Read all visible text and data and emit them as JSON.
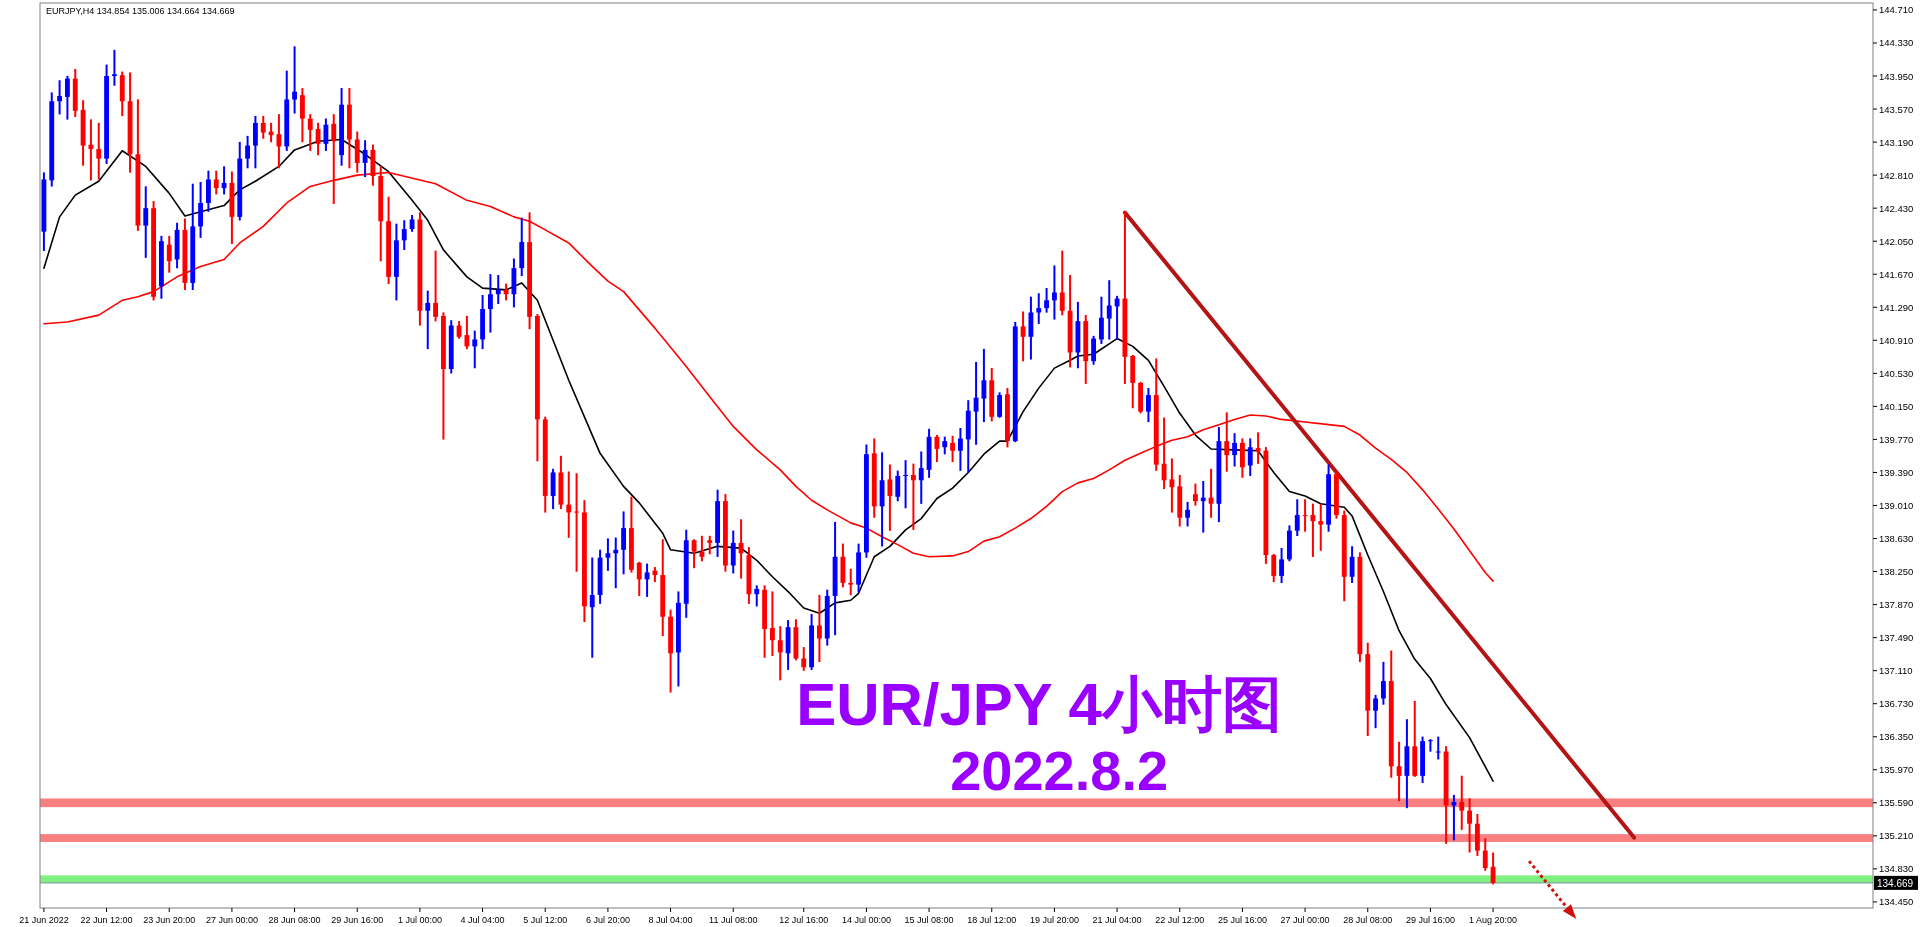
{
  "chart_data": {
    "type": "candlestick",
    "title": "EUR/JPY 4小时图",
    "subtitle": "2022.8.2",
    "annotations": [
      "EURJPY,H4  134.854 135.006 134.664 134.669"
    ],
    "categories": [
      "21 Jun 2022",
      null,
      null,
      null,
      null,
      null,
      null,
      null,
      "22 Jun 12:00",
      null,
      null,
      null,
      null,
      null,
      null,
      null,
      "23 Jun 20:00",
      null,
      null,
      null,
      null,
      null,
      null,
      null,
      "27 Jun 00:00",
      null,
      null,
      null,
      null,
      null,
      null,
      null,
      "28 Jun 08:00",
      null,
      null,
      null,
      null,
      null,
      null,
      null,
      "29 Jun 16:00",
      null,
      null,
      null,
      null,
      null,
      null,
      null,
      "1 Jul 00:00",
      null,
      null,
      null,
      null,
      null,
      null,
      null,
      "4 Jul 04:00",
      null,
      null,
      null,
      null,
      null,
      null,
      null,
      "5 Jul 12:00",
      null,
      null,
      null,
      null,
      null,
      null,
      null,
      "6 Jul 20:00",
      null,
      null,
      null,
      null,
      null,
      null,
      null,
      "8 Jul 04:00",
      null,
      null,
      null,
      null,
      null,
      null,
      null,
      "11 Jul 08:00",
      null,
      null,
      null,
      null,
      null,
      null,
      null,
      null,
      "12 Jul 16:00",
      null,
      null,
      null,
      null,
      null,
      null,
      null,
      "14 Jul 00:00",
      null,
      null,
      null,
      null,
      null,
      null,
      null,
      "15 Jul 08:00",
      null,
      null,
      null,
      null,
      null,
      null,
      null,
      "18 Jul 12:00",
      null,
      null,
      null,
      null,
      null,
      null,
      null,
      "19 Jul 20:00",
      null,
      null,
      null,
      null,
      null,
      null,
      null,
      "21 Jul 04:00",
      null,
      null,
      null,
      null,
      null,
      null,
      null,
      "22 Jul 12:00",
      null,
      null,
      null,
      null,
      null,
      null,
      null,
      "25 Jul 16:00",
      null,
      null,
      null,
      null,
      null,
      null,
      null,
      "27 Jul 00:00",
      null,
      null,
      null,
      null,
      null,
      null,
      null,
      "28 Jul 08:00",
      null,
      null,
      null,
      null,
      null,
      null,
      null,
      "29 Jul 16:00",
      null,
      null,
      null,
      null,
      null,
      null,
      null,
      "1 Aug 20:00",
      null,
      null,
      null,
      null,
      null,
      null,
      null,
      null,
      null,
      null,
      null,
      null,
      null,
      null,
      null,
      null,
      null,
      null,
      null,
      null,
      null,
      null,
      null,
      null,
      null,
      null,
      null,
      null,
      null,
      null,
      null,
      null,
      null,
      null,
      null,
      null,
      null,
      null,
      null,
      null,
      null,
      null,
      null,
      null,
      null,
      null,
      null,
      null
    ],
    "ohlc": [
      [
        142.16,
        142.83,
        141.95,
        142.76
      ],
      [
        142.75,
        143.75,
        142.69,
        143.66
      ],
      [
        143.66,
        143.89,
        143.52,
        143.72
      ],
      [
        143.71,
        143.94,
        143.46,
        143.92
      ],
      [
        143.92,
        144.02,
        143.49,
        143.55
      ],
      [
        143.56,
        143.66,
        142.93,
        143.15
      ],
      [
        143.16,
        143.44,
        142.76,
        143.11
      ],
      [
        143.11,
        143.4,
        142.77,
        143.0
      ],
      [
        143.0,
        144.07,
        142.95,
        143.95
      ],
      [
        143.95,
        144.24,
        143.85,
        143.97
      ],
      [
        143.96,
        143.99,
        143.5,
        143.66
      ],
      [
        143.66,
        143.98,
        142.85,
        143.05
      ],
      [
        143.05,
        143.67,
        142.18,
        142.23
      ],
      [
        142.23,
        142.67,
        141.87,
        142.43
      ],
      [
        142.43,
        142.5,
        141.38,
        141.41
      ],
      [
        141.53,
        142.1,
        141.4,
        142.05
      ],
      [
        142.01,
        142.1,
        141.7,
        141.82
      ],
      [
        141.84,
        142.25,
        141.75,
        142.18
      ],
      [
        142.18,
        142.3,
        141.5,
        141.57
      ],
      [
        141.57,
        142.7,
        141.5,
        142.22
      ],
      [
        142.22,
        142.72,
        142.1,
        142.49
      ],
      [
        142.49,
        142.85,
        142.4,
        142.76
      ],
      [
        142.76,
        142.85,
        142.6,
        142.66
      ],
      [
        142.66,
        142.9,
        142.6,
        142.72
      ],
      [
        142.72,
        142.84,
        142.03,
        142.33
      ],
      [
        142.33,
        143.18,
        142.3,
        143.0
      ],
      [
        143.0,
        143.25,
        142.9,
        143.15
      ],
      [
        143.15,
        143.48,
        142.9,
        143.41
      ],
      [
        143.41,
        143.48,
        143.24,
        143.3
      ],
      [
        143.31,
        143.4,
        143.2,
        143.27
      ],
      [
        143.28,
        143.5,
        142.9,
        143.14
      ],
      [
        143.14,
        144.0,
        143.1,
        143.68
      ],
      [
        143.68,
        144.28,
        143.53,
        143.77
      ],
      [
        143.73,
        143.8,
        143.2,
        143.46
      ],
      [
        143.46,
        143.5,
        143.1,
        143.33
      ],
      [
        143.34,
        143.4,
        143.05,
        143.17
      ],
      [
        143.17,
        143.45,
        143.1,
        143.39
      ],
      [
        143.4,
        143.5,
        142.49,
        143.2
      ],
      [
        143.04,
        143.8,
        142.93,
        143.62
      ],
      [
        143.62,
        143.8,
        142.9,
        143.22
      ],
      [
        143.22,
        143.3,
        142.85,
        142.95
      ],
      [
        142.95,
        143.2,
        142.8,
        143.1
      ],
      [
        143.1,
        143.15,
        142.7,
        142.8
      ],
      [
        142.8,
        142.9,
        141.83,
        142.28
      ],
      [
        142.28,
        142.55,
        141.57,
        141.64
      ],
      [
        141.64,
        142.24,
        141.38,
        142.06
      ],
      [
        142.06,
        142.28,
        141.96,
        142.19
      ],
      [
        142.19,
        142.34,
        142.17,
        142.3
      ],
      [
        142.3,
        142.37,
        141.09,
        141.25
      ],
      [
        141.25,
        141.47,
        140.82,
        141.34
      ],
      [
        141.34,
        141.93,
        141.14,
        141.18
      ],
      [
        141.19,
        141.22,
        139.78,
        140.58
      ],
      [
        140.58,
        141.13,
        140.54,
        141.08
      ],
      [
        141.08,
        141.12,
        140.94,
        140.95
      ],
      [
        140.97,
        141.18,
        140.82,
        140.84
      ],
      [
        140.84,
        141.01,
        140.6,
        140.92
      ],
      [
        140.92,
        141.42,
        140.82,
        141.27
      ],
      [
        141.27,
        141.66,
        141.01,
        141.44
      ],
      [
        141.44,
        141.65,
        141.34,
        141.49
      ],
      [
        141.49,
        141.55,
        141.38,
        141.44
      ],
      [
        141.44,
        141.84,
        141.3,
        141.74
      ],
      [
        141.74,
        142.31,
        141.66,
        142.04
      ],
      [
        142.04,
        142.37,
        141.05,
        141.18
      ],
      [
        141.19,
        141.2,
        139.53,
        140.0
      ],
      [
        140.0,
        140.02,
        138.94,
        139.12
      ],
      [
        139.12,
        139.42,
        138.98,
        139.39
      ],
      [
        139.39,
        139.57,
        138.98,
        139.02
      ],
      [
        139.02,
        139.39,
        138.65,
        138.93
      ],
      [
        138.94,
        139.37,
        138.26,
        138.93
      ],
      [
        138.93,
        139.06,
        137.68,
        137.85
      ],
      [
        137.84,
        138.4,
        137.27,
        137.98
      ],
      [
        137.98,
        138.49,
        137.89,
        138.41
      ],
      [
        138.41,
        138.62,
        138.27,
        138.46
      ],
      [
        138.46,
        138.63,
        138.07,
        138.5
      ],
      [
        138.5,
        138.93,
        138.23,
        138.75
      ],
      [
        138.75,
        139.1,
        138.25,
        138.27
      ],
      [
        138.35,
        138.35,
        137.98,
        138.16
      ],
      [
        138.16,
        138.33,
        137.97,
        138.24
      ],
      [
        138.26,
        138.29,
        138.14,
        138.21
      ],
      [
        138.21,
        138.61,
        137.52,
        137.73
      ],
      [
        137.73,
        137.8,
        136.87,
        137.31
      ],
      [
        137.32,
        138.01,
        136.94,
        137.89
      ],
      [
        137.88,
        138.72,
        137.73,
        138.61
      ],
      [
        138.61,
        138.61,
        138.3,
        138.48
      ],
      [
        138.48,
        138.65,
        138.38,
        138.42
      ],
      [
        138.61,
        138.65,
        138.46,
        138.58
      ],
      [
        138.58,
        139.18,
        138.43,
        139.06
      ],
      [
        139.06,
        139.13,
        138.26,
        138.32
      ],
      [
        138.32,
        138.71,
        138.24,
        138.58
      ],
      [
        138.58,
        138.84,
        138.18,
        138.46
      ],
      [
        138.44,
        138.52,
        137.89,
        137.99
      ],
      [
        137.99,
        138.08,
        137.86,
        138.05
      ],
      [
        138.04,
        138.08,
        137.27,
        137.59
      ],
      [
        137.6,
        138.01,
        137.29,
        137.46
      ],
      [
        137.46,
        137.61,
        137.01,
        137.32
      ],
      [
        137.31,
        137.68,
        137.13,
        137.61
      ],
      [
        137.61,
        137.69,
        137.24,
        137.25
      ],
      [
        137.25,
        137.37,
        137.12,
        137.15
      ],
      [
        137.15,
        137.75,
        137.13,
        137.63
      ],
      [
        137.63,
        137.97,
        137.22,
        137.48
      ],
      [
        137.48,
        138.03,
        137.41,
        137.97
      ],
      [
        137.97,
        138.81,
        137.53,
        138.42
      ],
      [
        138.42,
        138.56,
        138.08,
        138.12
      ],
      [
        138.12,
        138.27,
        137.99,
        138.1
      ],
      [
        138.1,
        138.56,
        138.02,
        138.47
      ],
      [
        138.47,
        139.7,
        138.42,
        139.6
      ],
      [
        139.61,
        139.77,
        138.88,
        139.0
      ],
      [
        139.0,
        139.61,
        138.55,
        139.3
      ],
      [
        139.31,
        139.47,
        138.73,
        139.12
      ],
      [
        139.11,
        139.4,
        139.07,
        139.35
      ],
      [
        139.35,
        139.52,
        138.99,
        139.36
      ],
      [
        139.36,
        139.48,
        138.74,
        139.3
      ],
      [
        139.3,
        139.62,
        139.04,
        139.44
      ],
      [
        139.42,
        139.88,
        139.34,
        139.8
      ],
      [
        139.8,
        139.81,
        139.52,
        139.66
      ],
      [
        139.68,
        139.79,
        139.61,
        139.75
      ],
      [
        139.73,
        139.8,
        139.52,
        139.64
      ],
      [
        139.64,
        139.89,
        139.42,
        139.78
      ],
      [
        139.77,
        140.21,
        139.4,
        140.1
      ],
      [
        140.09,
        140.65,
        139.72,
        140.25
      ],
      [
        140.24,
        140.8,
        139.98,
        140.45
      ],
      [
        140.45,
        140.58,
        139.99,
        140.03
      ],
      [
        140.03,
        140.3,
        140.03,
        140.28
      ],
      [
        140.29,
        140.35,
        139.69,
        139.75
      ],
      [
        139.75,
        141.11,
        139.75,
        141.07
      ],
      [
        141.07,
        141.23,
        140.68,
        140.95
      ],
      [
        140.95,
        141.4,
        140.7,
        141.23
      ],
      [
        141.23,
        141.44,
        141.11,
        141.28
      ],
      [
        141.28,
        141.5,
        141.24,
        141.37
      ],
      [
        141.37,
        141.76,
        141.16,
        141.46
      ],
      [
        141.46,
        141.93,
        141.21,
        141.25
      ],
      [
        141.25,
        141.65,
        140.61,
        140.77
      ],
      [
        140.77,
        141.34,
        140.6,
        141.13
      ],
      [
        141.13,
        141.19,
        140.42,
        140.67
      ],
      [
        140.67,
        140.95,
        140.64,
        140.93
      ],
      [
        140.92,
        141.4,
        140.88,
        141.17
      ],
      [
        141.16,
        141.59,
        140.93,
        141.31
      ],
      [
        141.3,
        141.41,
        140.93,
        141.39
      ],
      [
        141.39,
        142.38,
        140.42,
        140.72
      ],
      [
        140.73,
        140.73,
        140.14,
        140.42
      ],
      [
        140.42,
        140.42,
        140.08,
        140.09
      ],
      [
        140.09,
        140.35,
        139.98,
        140.28
      ],
      [
        140.28,
        140.69,
        139.42,
        139.48
      ],
      [
        139.49,
        140.01,
        139.21,
        139.3
      ],
      [
        139.31,
        139.54,
        138.94,
        139.22
      ],
      [
        139.23,
        139.35,
        138.78,
        138.87
      ],
      [
        138.87,
        139.04,
        138.78,
        138.96
      ],
      [
        139.14,
        139.25,
        139.02,
        139.06
      ],
      [
        139.06,
        139.28,
        138.71,
        139.1
      ],
      [
        139.1,
        139.42,
        138.88,
        139.03
      ],
      [
        139.03,
        139.9,
        138.83,
        139.75
      ],
      [
        139.75,
        140.07,
        139.41,
        139.59
      ],
      [
        139.59,
        139.83,
        139.47,
        139.73
      ],
      [
        139.73,
        139.77,
        139.34,
        139.45
      ],
      [
        139.47,
        139.77,
        139.36,
        139.68
      ],
      [
        139.67,
        139.84,
        139.5,
        139.63
      ],
      [
        139.64,
        139.67,
        138.35,
        138.44
      ],
      [
        138.44,
        138.44,
        138.14,
        138.2
      ],
      [
        138.2,
        138.51,
        138.13,
        138.39
      ],
      [
        138.39,
        138.77,
        138.38,
        138.72
      ],
      [
        138.72,
        139.07,
        138.67,
        138.9
      ],
      [
        138.9,
        139.07,
        138.72,
        138.89
      ],
      [
        138.9,
        139.02,
        138.43,
        138.83
      ],
      [
        138.83,
        139.02,
        138.5,
        138.79
      ],
      [
        138.79,
        139.47,
        138.72,
        139.37
      ],
      [
        139.37,
        139.39,
        138.87,
        138.9
      ],
      [
        138.9,
        138.94,
        137.92,
        138.19
      ],
      [
        138.19,
        138.53,
        138.13,
        138.42
      ],
      [
        138.42,
        138.46,
        137.22,
        137.3
      ],
      [
        137.3,
        137.42,
        136.37,
        136.65
      ],
      [
        136.65,
        136.82,
        136.46,
        136.79
      ],
      [
        136.79,
        137.2,
        136.73,
        136.99
      ],
      [
        136.99,
        137.33,
        135.89,
        136.01
      ],
      [
        136.01,
        136.28,
        135.62,
        135.9
      ],
      [
        135.9,
        136.54,
        135.54,
        136.24
      ],
      [
        136.24,
        136.75,
        135.9,
        135.9
      ],
      [
        135.9,
        136.34,
        135.83,
        136.3
      ],
      [
        136.3,
        136.31,
        136.19,
        136.31
      ],
      [
        136.17,
        136.34,
        136.1,
        136.18
      ],
      [
        136.18,
        136.23,
        135.13,
        135.56
      ],
      [
        135.56,
        135.67,
        135.17,
        135.6
      ],
      [
        135.6,
        135.89,
        135.29,
        135.5
      ],
      [
        135.5,
        135.63,
        135.03,
        135.35
      ],
      [
        135.35,
        135.45,
        134.99,
        135.04
      ],
      [
        135.04,
        135.17,
        134.82,
        134.84
      ],
      [
        134.854,
        135.006,
        134.664,
        134.669
      ],
      null,
      null,
      null,
      null,
      null,
      null,
      null,
      null,
      null,
      null,
      null,
      null,
      null,
      null,
      null,
      null,
      null,
      null,
      null,
      null,
      null,
      null,
      null,
      null,
      null,
      null,
      null,
      null,
      null,
      null,
      null,
      null,
      null,
      null,
      null,
      null,
      null,
      null,
      null,
      null,
      null,
      null,
      null,
      null,
      null,
      null,
      null,
      null
    ],
    "colors": [
      "#0000ff",
      "#0000ff",
      "#0000ff",
      "#0000ff",
      "#ff0000",
      "#ff0000",
      "#ff0000",
      "#ff0000",
      "#0000ff",
      "#0000ff",
      "#ff0000",
      "#ff0000",
      "#ff0000",
      "#0000ff",
      "#ff0000",
      "#0000ff",
      "#ff0000",
      "#0000ff",
      "#ff0000",
      "#0000ff",
      "#0000ff",
      "#0000ff",
      "#ff0000",
      "#0000ff",
      "#ff0000",
      "#0000ff",
      "#0000ff",
      "#0000ff",
      "#ff0000",
      "#ff0000",
      "#ff0000",
      "#0000ff",
      "#0000ff",
      "#ff0000",
      "#ff0000",
      "#ff0000",
      "#0000ff",
      "#ff0000",
      "#0000ff",
      "#ff0000",
      "#ff0000",
      "#0000ff",
      "#ff0000",
      "#ff0000",
      "#ff0000",
      "#0000ff",
      "#0000ff",
      "#0000ff",
      "#ff0000",
      "#0000ff",
      "#ff0000",
      "#ff0000",
      "#0000ff",
      "#ff0000",
      "#ff0000",
      "#0000ff",
      "#0000ff",
      "#0000ff",
      "#0000ff",
      "#ff0000",
      "#0000ff",
      "#0000ff",
      "#ff0000",
      "#ff0000",
      "#ff0000",
      "#0000ff",
      "#ff0000",
      "#ff0000",
      "#ff0000",
      "#ff0000",
      "#0000ff",
      "#0000ff",
      "#0000ff",
      "#0000ff",
      "#0000ff",
      "#ff0000",
      "#ff0000",
      "#0000ff",
      "#ff0000",
      "#ff0000",
      "#ff0000",
      "#0000ff",
      "#0000ff",
      "#ff0000",
      "#ff0000",
      "#ff0000",
      "#0000ff",
      "#ff0000",
      "#0000ff",
      "#ff0000",
      "#ff0000",
      "#0000ff",
      "#ff0000",
      "#ff0000",
      "#ff0000",
      "#0000ff",
      "#ff0000",
      "#ff0000",
      "#0000ff",
      "#ff0000",
      "#0000ff",
      "#0000ff",
      "#ff0000",
      "#ff0000",
      "#0000ff",
      "#0000ff",
      "#ff0000",
      "#0000ff",
      "#ff0000",
      "#0000ff",
      "#0000ff",
      "#ff0000",
      "#0000ff",
      "#0000ff",
      "#ff0000",
      "#0000ff",
      "#ff0000",
      "#0000ff",
      "#0000ff",
      "#0000ff",
      "#0000ff",
      "#ff0000",
      "#0000ff",
      "#ff0000",
      "#0000ff",
      "#ff0000",
      "#0000ff",
      "#0000ff",
      "#0000ff",
      "#0000ff",
      "#ff0000",
      "#ff0000",
      "#0000ff",
      "#ff0000",
      "#0000ff",
      "#0000ff",
      "#0000ff",
      "#0000ff",
      "#ff0000",
      "#ff0000",
      "#ff0000",
      "#0000ff",
      "#ff0000",
      "#ff0000",
      "#ff0000",
      "#ff0000",
      "#0000ff",
      "#ff0000",
      "#0000ff",
      "#ff0000",
      "#0000ff",
      "#ff0000",
      "#0000ff",
      "#ff0000",
      "#0000ff",
      "#ff0000",
      "#ff0000",
      "#ff0000",
      "#0000ff",
      "#0000ff",
      "#0000ff",
      "#ff0000",
      "#ff0000",
      "#ff0000",
      "#0000ff",
      "#ff0000",
      "#ff0000",
      "#0000ff",
      "#ff0000",
      "#ff0000",
      "#0000ff",
      "#0000ff",
      "#ff0000",
      "#ff0000",
      "#0000ff",
      "#ff0000",
      "#0000ff",
      "#0000ff",
      "#0000ff",
      "#ff0000",
      "#0000ff",
      "#ff0000",
      "#ff0000",
      "#ff0000",
      "#ff0000",
      "#ff0000",
      null,
      null,
      null,
      null,
      null,
      null,
      null,
      null,
      null,
      null,
      null,
      null,
      null,
      null,
      null,
      null,
      null,
      null,
      null,
      null,
      null,
      null,
      null,
      null,
      null,
      null,
      null,
      null,
      null,
      null,
      null,
      null,
      null,
      null,
      null,
      null,
      null,
      null,
      null,
      null,
      null,
      null,
      null,
      null,
      null,
      null,
      null,
      null
    ],
    "series": [
      {
        "type": "line",
        "color": "#000000",
        "values": [
          141.74,
          null,
          142.33,
          null,
          142.58,
          null,
          null,
          142.74,
          null,
          null,
          143.09,
          null,
          null,
          142.91,
          null,
          null,
          142.6,
          null,
          142.34,
          null,
          142.39,
          null,
          null,
          142.46,
          null,
          142.64,
          null,
          142.74,
          null,
          null,
          142.91,
          null,
          143.1,
          null,
          null,
          143.2,
          null,
          null,
          143.22,
          null,
          null,
          143.05,
          null,
          null,
          142.85,
          null,
          null,
          142.52,
          null,
          142.29,
          null,
          141.95,
          null,
          null,
          141.64,
          null,
          141.51,
          null,
          null,
          141.49,
          null,
          141.57,
          null,
          141.37,
          null,
          140.91,
          null,
          140.45,
          null,
          140.03,
          null,
          139.61,
          null,
          null,
          139.23,
          null,
          139.04,
          null,
          null,
          138.69,
          138.5,
          null,
          null,
          138.46,
          null,
          null,
          138.54,
          null,
          null,
          138.52,
          null,
          138.38,
          null,
          138.19,
          null,
          138.02,
          null,
          137.83,
          null,
          137.77,
          null,
          137.89,
          null,
          137.92,
          138.0,
          null,
          138.42,
          null,
          138.54,
          null,
          138.73,
          null,
          138.86,
          null,
          139.09,
          null,
          139.21,
          null,
          139.39,
          null,
          139.6,
          null,
          139.75,
          139.75,
          null,
          140.09,
          null,
          140.36,
          null,
          140.59,
          null,
          140.68,
          140.73,
          null,
          140.75,
          null,
          null,
          140.93,
          null,
          140.84,
          null,
          140.68,
          null,
          140.38,
          null,
          140.07,
          null,
          139.82,
          null,
          139.66,
          null,
          null,
          139.65,
          null,
          null,
          139.64,
          null,
          139.39,
          null,
          139.17,
          null,
          139.12,
          null,
          139.03,
          null,
          null,
          138.99,
          138.89,
          null,
          138.44,
          null,
          138.02,
          null,
          137.57,
          null,
          137.24,
          null,
          137.02,
          null,
          136.72,
          null,
          null,
          136.34,
          null,
          null,
          135.84,
          null,
          null,
          null,
          null,
          null,
          null,
          null,
          null,
          null,
          null,
          null,
          null,
          null,
          null,
          null,
          null,
          null,
          null,
          null,
          null,
          null,
          null,
          null,
          null,
          null,
          null,
          null,
          null,
          null,
          null,
          null,
          null,
          null,
          null,
          null,
          null,
          null,
          null,
          null,
          null,
          null,
          null,
          null,
          null,
          null,
          null,
          null,
          null
        ]
      },
      {
        "type": "line",
        "color": "#ff0000",
        "values": [
          141.1,
          null,
          null,
          141.12,
          null,
          null,
          null,
          141.2,
          null,
          null,
          141.37,
          null,
          141.41,
          null,
          141.47,
          null,
          null,
          141.64,
          null,
          null,
          141.76,
          null,
          null,
          141.84,
          null,
          142.03,
          null,
          null,
          142.22,
          null,
          null,
          142.49,
          null,
          null,
          142.68,
          null,
          null,
          142.75,
          null,
          null,
          142.81,
          null,
          null,
          null,
          142.84,
          null,
          null,
          null,
          null,
          null,
          142.71,
          null,
          null,
          null,
          142.52,
          null,
          null,
          142.45,
          null,
          null,
          142.33,
          null,
          142.28,
          null,
          142.18,
          null,
          null,
          142.03,
          null,
          null,
          141.76,
          null,
          141.59,
          null,
          141.47,
          null,
          141.26,
          null,
          141.05,
          null,
          140.83,
          null,
          140.61,
          null,
          null,
          140.26,
          null,
          null,
          139.92,
          null,
          null,
          139.65,
          null,
          null,
          139.42,
          null,
          139.23,
          null,
          139.07,
          null,
          138.96,
          null,
          null,
          138.81,
          null,
          138.75,
          null,
          138.65,
          null,
          138.56,
          null,
          138.46,
          null,
          138.42,
          null,
          null,
          138.43,
          null,
          138.48,
          null,
          138.6,
          null,
          138.65,
          null,
          138.75,
          null,
          138.86,
          null,
          139.0,
          null,
          139.17,
          null,
          139.27,
          null,
          139.32,
          null,
          139.42,
          null,
          139.53,
          null,
          139.61,
          null,
          139.69,
          null,
          139.76,
          null,
          139.8,
          null,
          139.88,
          null,
          139.94,
          null,
          140.0,
          null,
          140.05,
          null,
          140.04,
          null,
          140.0,
          null,
          null,
          139.97,
          null,
          null,
          139.94,
          null,
          139.92,
          null,
          139.82,
          null,
          139.67,
          null,
          139.54,
          null,
          139.39,
          null,
          139.19,
          null,
          138.97,
          null,
          138.74,
          null,
          138.49,
          null,
          138.24,
          138.14,
          null,
          null,
          null,
          null,
          null,
          null,
          null,
          null,
          null,
          null,
          null,
          null,
          null,
          null,
          null,
          null,
          null,
          null,
          null,
          null,
          null,
          null,
          null,
          null,
          null,
          null,
          null,
          null,
          null,
          null,
          null,
          null,
          null,
          null,
          null,
          null,
          null,
          null,
          null,
          null,
          null,
          null,
          null,
          null,
          null,
          null,
          null,
          null
        ]
      },
      {
        "type": "line",
        "color": "#b41414",
        "values": [
          null,
          null,
          null,
          null,
          null,
          null,
          null,
          null,
          null,
          null,
          null,
          null,
          null,
          null,
          null,
          null,
          null,
          null,
          null,
          null,
          null,
          null,
          null,
          null,
          null,
          null,
          null,
          null,
          null,
          null,
          null,
          null,
          null,
          null,
          null,
          null,
          null,
          null,
          null,
          null,
          null,
          null,
          null,
          null,
          null,
          null,
          null,
          null,
          null,
          null,
          null,
          null,
          null,
          null,
          null,
          null,
          null,
          null,
          null,
          null,
          null,
          null,
          null,
          null,
          null,
          null,
          null,
          null,
          null,
          null,
          null,
          null,
          null,
          null,
          null,
          null,
          null,
          null,
          null,
          null,
          null,
          null,
          null,
          null,
          null,
          null,
          null,
          null,
          null,
          null,
          null,
          null,
          null,
          null,
          null,
          null,
          null,
          null,
          null,
          null,
          null,
          null,
          null,
          null,
          null,
          null,
          null,
          null,
          null,
          null,
          null,
          null,
          null,
          null,
          null,
          null,
          null,
          null,
          null,
          null,
          null,
          null,
          null,
          null,
          null,
          null,
          null,
          null,
          null,
          null,
          null,
          null,
          null,
          null,
          null,
          null,
          null,
          null,
          142.38,
          null,
          null,
          null,
          null,
          null,
          null,
          null,
          null,
          null,
          null,
          null,
          null,
          null,
          null,
          null,
          null,
          null,
          null,
          null,
          null,
          null,
          null,
          null,
          null,
          null,
          null,
          null,
          null,
          null,
          null,
          null,
          null,
          null,
          null,
          null,
          null,
          null,
          null,
          null,
          null,
          null,
          null,
          null,
          null,
          null,
          null,
          null,
          null,
          null,
          null,
          null,
          null,
          null,
          null,
          null,
          null,
          null,
          null,
          null,
          null,
          null,
          null,
          null,
          null,
          135.19,
          null,
          null,
          null,
          null,
          null,
          null,
          null,
          null,
          null,
          null,
          null,
          null,
          null,
          null,
          null,
          null,
          null,
          null,
          null,
          null,
          null,
          null,
          null,
          null,
          null,
          null,
          null,
          null,
          null,
          null
        ]
      }
    ],
    "ylim": [
      134.38,
      144.79
    ],
    "yticks": [
      {
        "value": 134.45,
        "label": "134.450"
      },
      {
        "value": 134.83,
        "label": "134.830"
      },
      {
        "value": 135.21,
        "label": "135.210"
      },
      {
        "value": 135.59,
        "label": "135.590"
      },
      {
        "value": 135.97,
        "label": "135.970"
      },
      {
        "value": 136.35,
        "label": "136.350"
      },
      {
        "value": 136.73,
        "label": "136.730"
      },
      {
        "value": 137.11,
        "label": "137.110"
      },
      {
        "value": 137.49,
        "label": "137.490"
      },
      {
        "value": 137.87,
        "label": "137.870"
      },
      {
        "value": 138.25,
        "label": "138.250"
      },
      {
        "value": 138.63,
        "label": "138.630"
      },
      {
        "value": 139.01,
        "label": "139.010"
      },
      {
        "value": 139.39,
        "label": "139.390"
      },
      {
        "value": 139.77,
        "label": "139.770"
      },
      {
        "value": 140.15,
        "label": "140.150"
      },
      {
        "value": 140.53,
        "label": "140.530"
      },
      {
        "value": 140.91,
        "label": "140.910"
      },
      {
        "value": 141.29,
        "label": "141.290"
      },
      {
        "value": 141.67,
        "label": "141.670"
      },
      {
        "value": 142.05,
        "label": "142.050"
      },
      {
        "value": 142.43,
        "label": "142.430"
      },
      {
        "value": 142.81,
        "label": "142.810"
      },
      {
        "value": 143.19,
        "label": "143.190"
      },
      {
        "value": 143.57,
        "label": "143.570"
      },
      {
        "value": 143.95,
        "label": "143.950"
      },
      {
        "value": 144.33,
        "label": "144.330"
      },
      {
        "value": 144.71,
        "label": "144.710"
      }
    ],
    "bands": [
      {
        "axis": "y",
        "from": 135.54,
        "to": 135.64,
        "color": "#f88080"
      },
      {
        "axis": "y",
        "from": 135.14,
        "to": 135.23,
        "color": "#f88080"
      },
      {
        "axis": "y",
        "from": 134.665,
        "to": 134.755,
        "color": "#80f080"
      }
    ],
    "ref_lines": [
      {
        "axis": "y",
        "value": 134.669,
        "label": "134.669",
        "color": "#8596a8"
      }
    ]
  }
}
